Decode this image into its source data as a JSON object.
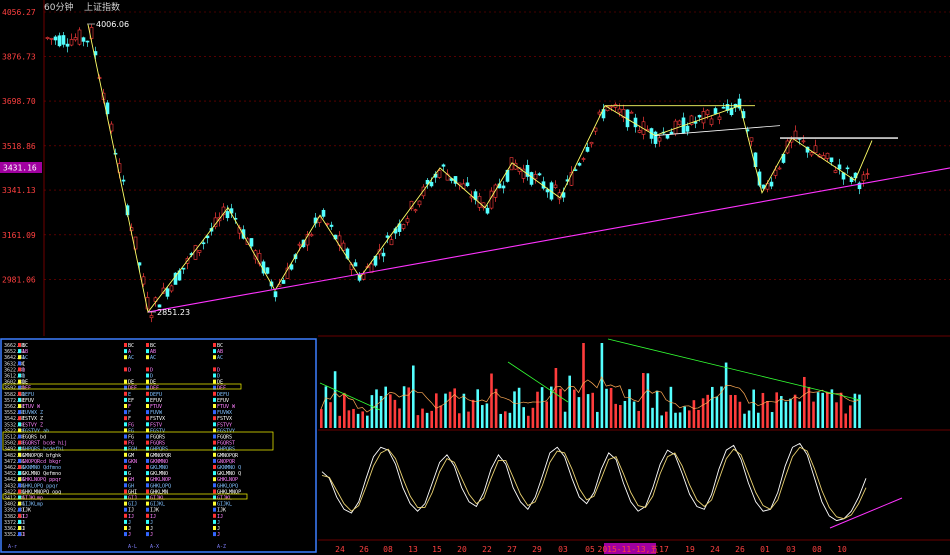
{
  "header": {
    "period_label": "60分钟",
    "symbol_label": "上证指数"
  },
  "current_price_label": "3431.16",
  "high_label": "4006.06",
  "low_label": "2851.23",
  "colors": {
    "up": "#ff3c3c",
    "down": "#54ffff",
    "grid": "#8b0000",
    "trend": "#ff33ff",
    "zigzag": "#ffff66",
    "panel_border": "#3d7fff",
    "highlight_date_bg": "#a000a0"
  },
  "chart_data": [
    {
      "type": "candlestick",
      "title": "",
      "ylim": [
        2851.23,
        4056.27
      ],
      "y_ticks": [
        "4056.27",
        "3876.73",
        "3698.70",
        "3518.86",
        "3431.16",
        "3341.13",
        "3161.09",
        "2981.06"
      ],
      "annotations": [
        {
          "label": "4006.06",
          "kind": "high"
        },
        {
          "label": "2851.23",
          "kind": "low"
        }
      ],
      "zigzag_points": [
        4006,
        2851,
        3270,
        2938,
        3240,
        2990,
        3430,
        3270,
        3450,
        3310,
        3680,
        3560,
        3680,
        3330,
        3550,
        3380
      ],
      "trendlines": [
        {
          "name": "support",
          "y_values": [
            2851,
            3560
          ]
        },
        {
          "name": "resistance",
          "y_values": [
            3550,
            3550
          ]
        }
      ]
    },
    {
      "type": "bar",
      "title": "",
      "description_key": "volume",
      "bar_count": 118
    },
    {
      "type": "line",
      "title": "",
      "description_key": "oscillator",
      "series": [
        {
          "values": [
            62,
            55,
            35,
            22,
            18,
            30,
            55,
            78,
            88,
            85,
            70,
            45,
            28,
            20,
            28,
            50,
            72,
            80,
            68,
            45,
            30,
            25,
            40,
            65,
            80,
            70,
            45,
            30,
            22,
            35,
            58,
            82,
            88,
            78,
            55,
            35,
            28,
            40,
            65,
            82,
            75,
            50,
            30,
            20,
            25,
            45,
            70,
            85,
            80,
            60,
            38,
            25,
            22,
            38,
            65,
            85,
            90,
            75,
            50,
            30,
            20,
            22,
            40,
            68,
            88,
            92,
            80,
            55,
            30,
            15,
            10,
            12,
            20,
            35,
            55
          ]
        },
        {
          "values": [
            58,
            56,
            42,
            28,
            20,
            26,
            46,
            68,
            82,
            86,
            76,
            55,
            36,
            24,
            24,
            40,
            62,
            76,
            72,
            55,
            38,
            28,
            34,
            55,
            74,
            74,
            56,
            38,
            26,
            30,
            48,
            72,
            84,
            82,
            65,
            44,
            32,
            36,
            55,
            75,
            78,
            60,
            40,
            26,
            24,
            36,
            60,
            78,
            82,
            68,
            48,
            32,
            25,
            32,
            54,
            76,
            86,
            80,
            60,
            40,
            26,
            22,
            32,
            56,
            78,
            88,
            84,
            65,
            42,
            24,
            14,
            12,
            16,
            28,
            45
          ]
        }
      ]
    }
  ],
  "x_axis_labels": [
    "24",
    "26",
    "08",
    "13",
    "15",
    "20",
    "22",
    "27",
    "29",
    "03",
    "05",
    "2015-11-13,五",
    "17",
    "19",
    "24",
    "26",
    "01",
    "03",
    "08",
    "10"
  ],
  "market_profile": {
    "title": "",
    "prices": [
      "3662.81",
      "3652.81",
      "3642.81",
      "3632.81",
      "3622.81",
      "3612.81",
      "3602.81",
      "3592.81",
      "3582.81",
      "3572.81",
      "3562.81",
      "3552.81",
      "3542.81",
      "3532.81",
      "3522.81",
      "3512.81",
      "3502.81",
      "3492.81",
      "3482.81",
      "3472.81",
      "3462.81",
      "3452.81",
      "3442.81",
      "3432.81",
      "3422.81",
      "3412.81",
      "3402.81",
      "3392.81",
      "3382.81",
      "3372.81",
      "3362.81",
      "3352.81"
    ],
    "letters_col1": [
      "BC",
      "AB",
      "AC",
      "C",
      "D",
      "D",
      "DE",
      "DEF",
      "DEFU",
      "EFUV",
      "FTUV W",
      "FUVWX Z",
      "FSTVX Z",
      "FSTVY Z",
      "FGSTVY ab",
      "FGQRS bd",
      "FGQRST bcde hij",
      "GHPQRS bcdefhi",
      "GMNOPQR bfghk",
      "GNOPQRcd bkgr",
      "GKNMNO Qdfmno",
      "GKLMNO Qefmno",
      "GHKLNOPQ ppqr",
      "GHKLOPQ ppqr",
      "GHKLMNOPQ opq",
      "GIJKLmp",
      "GIJKLmp",
      "IJK",
      "IJ",
      "J",
      "J",
      "J"
    ],
    "letters_col2": [
      "BC",
      "A",
      "AC",
      "",
      "D",
      "",
      "DE",
      "DEF",
      "E",
      "EF",
      "F",
      "F",
      "F",
      "FG",
      "FG",
      "FG",
      "FG",
      "FGH",
      "GM",
      "GKN",
      "G",
      "G",
      "GH",
      "GH",
      "GHI",
      "GIJ",
      "GIJ",
      "IJ",
      "IJ",
      "J",
      "J",
      "J"
    ],
    "letters_col3": [
      "BC",
      "AB",
      "AC",
      "",
      "D",
      "D",
      "DE",
      "DEF",
      "DEFU",
      "EFUV",
      "FTUV",
      "FUVW",
      "FSTVX",
      "FSTV",
      "FGSTV",
      "FGQRS",
      "FGQRS",
      "GHPQRS",
      "GMNOPQR",
      "GKNMNO",
      "GKLMNO",
      "GKLMNO",
      "GHKLNOP",
      "GHKLOPQ",
      "GHKLMN",
      "GIJKL",
      "GIJKL",
      "IJK",
      "IJ",
      "J",
      "J",
      "J"
    ],
    "letters_col4": [
      "BC",
      "AB",
      "AC",
      "",
      "D",
      "D",
      "DE",
      "DEF",
      "DEFU",
      "EFUV",
      "FTUV W",
      "FUVWX",
      "FSTVX",
      "FSTVY",
      "FGSTVY",
      "FGQRS",
      "FGQRST",
      "GHPQRS",
      "GMNOPQR",
      "GNOPQR",
      "GKNMNO Q",
      "GKLMNO Q",
      "GHKLNOP",
      "GHKLOPQ",
      "GHKLMNOP",
      "GIJKL",
      "GIJKL",
      "IJK",
      "IJ",
      "J",
      "J",
      "J"
    ],
    "footer_labels": [
      "A-r",
      "A-L",
      "A-X",
      "A-Z"
    ]
  }
}
